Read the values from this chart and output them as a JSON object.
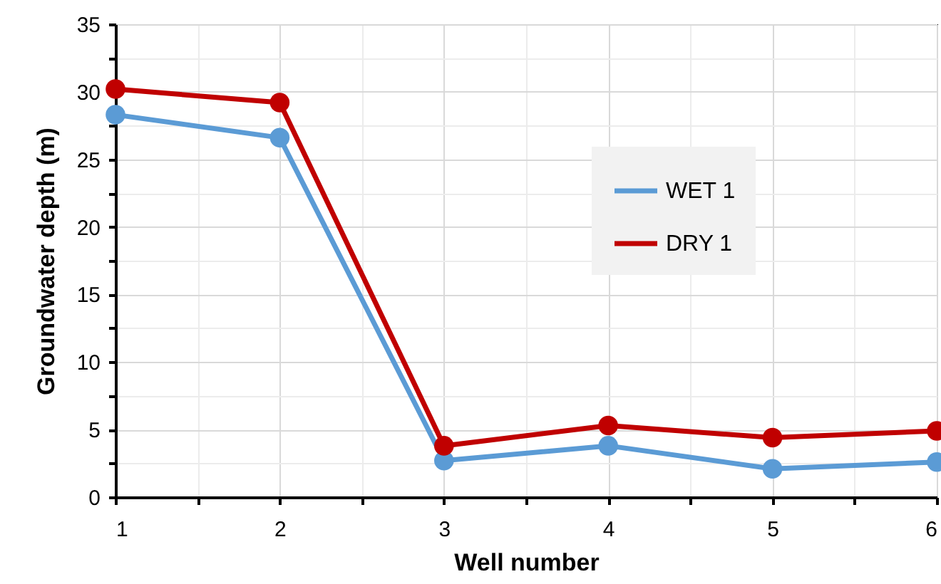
{
  "chart_data": {
    "type": "line",
    "xlabel": "Well number",
    "ylabel": "Groundwater depth (m)",
    "x": [
      1,
      2,
      3,
      4,
      5,
      6
    ],
    "series": [
      {
        "name": "WET 1",
        "color": "#5b9bd5",
        "values": [
          28.3,
          26.6,
          2.7,
          3.8,
          2.1,
          2.6
        ]
      },
      {
        "name": "DRY 1",
        "color": "#c00000",
        "values": [
          30.2,
          29.2,
          3.8,
          5.3,
          4.4,
          4.9
        ]
      }
    ],
    "xlim": [
      1,
      6
    ],
    "xticks": [
      1,
      {
        "value": 1.5,
        "label": null
      },
      2,
      {
        "value": 2.5,
        "label": null
      },
      3,
      {
        "value": 3.5,
        "label": null
      },
      4,
      {
        "value": 4.5,
        "label": null
      },
      5,
      {
        "value": 5.5,
        "label": null
      },
      6
    ],
    "ylim": [
      0,
      35
    ],
    "yticks": [
      0,
      {
        "value": 2.5,
        "label": null
      },
      5,
      {
        "value": 7.5,
        "label": null
      },
      10,
      {
        "value": 12.5,
        "label": null
      },
      15,
      {
        "value": 17.5,
        "label": null
      },
      20,
      {
        "value": 22.5,
        "label": null
      },
      25,
      {
        "value": 27.5,
        "label": null
      },
      30,
      {
        "value": 32.5,
        "label": null
      },
      35
    ],
    "grid": true,
    "legend": "right",
    "marker": "circle",
    "line_style": "solid"
  }
}
